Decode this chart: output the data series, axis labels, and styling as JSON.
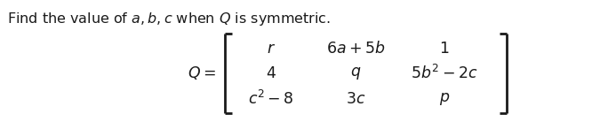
{
  "title": "Find the value of $a, b, c$ when $Q$ is symmetric.",
  "q_label": "$Q=$",
  "matrix_rows": [
    [
      "$r$",
      "$6a+5b$",
      "$1$"
    ],
    [
      "$4$",
      "$q$",
      "$5b^2-2c$"
    ],
    [
      "$c^2-8$",
      "$3c$",
      "$p$"
    ]
  ],
  "bg_color": "#ffffff",
  "text_color": "#1a1a1a",
  "title_fontsize": 11.5,
  "matrix_fontsize": 12.5,
  "qlabel_fontsize": 12.5
}
